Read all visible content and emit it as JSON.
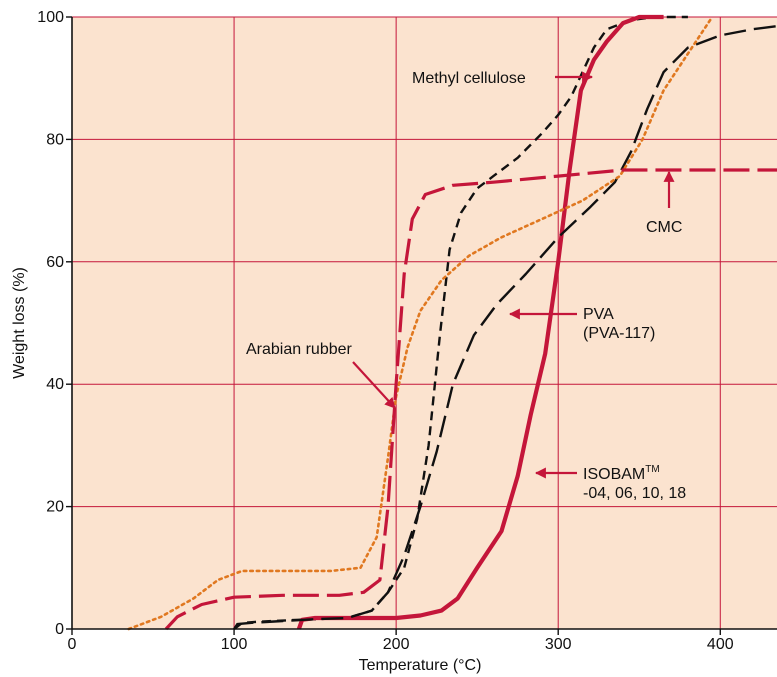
{
  "chart_data": {
    "type": "line",
    "title": "",
    "xlabel": "Temperature (°C)",
    "ylabel": "Weight loss (%)",
    "xlim": [
      0,
      435
    ],
    "ylim": [
      0,
      100
    ],
    "x_ticks": [
      0,
      100,
      200,
      300,
      400
    ],
    "y_ticks": [
      0,
      20,
      40,
      60,
      80,
      100
    ],
    "grid": true,
    "background": "#fbe3cf",
    "grid_color": "#c4163a",
    "series": [
      {
        "id": "methyl-cellulose",
        "style": "dashed-thin",
        "color": "#111111",
        "points": [
          [
            100,
            0
          ],
          [
            105,
            1
          ],
          [
            115,
            1.2
          ],
          [
            140,
            1.5
          ],
          [
            170,
            1.8
          ],
          [
            185,
            3
          ],
          [
            195,
            6
          ],
          [
            205,
            10
          ],
          [
            213,
            18
          ],
          [
            220,
            30
          ],
          [
            227,
            48
          ],
          [
            233,
            62
          ],
          [
            240,
            68
          ],
          [
            250,
            72
          ],
          [
            260,
            74
          ],
          [
            275,
            77
          ],
          [
            290,
            81
          ],
          [
            300,
            84
          ],
          [
            308,
            87
          ],
          [
            315,
            91
          ],
          [
            322,
            95
          ],
          [
            330,
            98
          ],
          [
            345,
            99.5
          ],
          [
            360,
            100
          ],
          [
            380,
            100
          ]
        ]
      },
      {
        "id": "isobam",
        "style": "solid-thick",
        "color": "#c4163a",
        "points": [
          [
            140,
            0
          ],
          [
            142,
            1.5
          ],
          [
            150,
            1.8
          ],
          [
            170,
            1.8
          ],
          [
            200,
            1.8
          ],
          [
            215,
            2.2
          ],
          [
            228,
            3
          ],
          [
            238,
            5
          ],
          [
            250,
            10
          ],
          [
            265,
            16
          ],
          [
            275,
            25
          ],
          [
            283,
            35
          ],
          [
            292,
            45
          ],
          [
            300,
            60
          ],
          [
            307,
            75
          ],
          [
            314,
            88
          ],
          [
            322,
            93
          ],
          [
            330,
            96
          ],
          [
            340,
            99
          ],
          [
            350,
            100
          ],
          [
            365,
            100
          ]
        ]
      },
      {
        "id": "pva",
        "style": "longdash",
        "color": "#111111",
        "points": [
          [
            100,
            0
          ],
          [
            102,
            0.8
          ],
          [
            110,
            1
          ],
          [
            130,
            1.3
          ],
          [
            150,
            1.6
          ],
          [
            170,
            1.8
          ],
          [
            185,
            3
          ],
          [
            195,
            6
          ],
          [
            205,
            12
          ],
          [
            215,
            20
          ],
          [
            225,
            29
          ],
          [
            235,
            40
          ],
          [
            248,
            48
          ],
          [
            262,
            53
          ],
          [
            280,
            58
          ],
          [
            300,
            64
          ],
          [
            320,
            69
          ],
          [
            335,
            73
          ],
          [
            345,
            78
          ],
          [
            355,
            85
          ],
          [
            365,
            91
          ],
          [
            380,
            95
          ],
          [
            400,
            97
          ],
          [
            420,
            98
          ],
          [
            435,
            98.5
          ]
        ]
      },
      {
        "id": "arabian-rubber",
        "style": "dotted",
        "color": "#e07820",
        "points": [
          [
            35,
            0
          ],
          [
            55,
            2
          ],
          [
            75,
            5
          ],
          [
            90,
            8
          ],
          [
            105,
            9.5
          ],
          [
            130,
            9.5
          ],
          [
            160,
            9.5
          ],
          [
            178,
            10
          ],
          [
            188,
            15
          ],
          [
            195,
            28
          ],
          [
            200,
            38
          ],
          [
            207,
            46
          ],
          [
            215,
            52
          ],
          [
            228,
            57
          ],
          [
            245,
            61
          ],
          [
            265,
            64
          ],
          [
            290,
            67
          ],
          [
            315,
            70
          ],
          [
            338,
            74
          ],
          [
            352,
            80
          ],
          [
            365,
            88
          ],
          [
            380,
            94
          ],
          [
            395,
            100
          ]
        ]
      },
      {
        "id": "cmc",
        "style": "longdash-red",
        "color": "#c4163a",
        "points": [
          [
            58,
            0
          ],
          [
            65,
            2
          ],
          [
            80,
            4
          ],
          [
            100,
            5.2
          ],
          [
            130,
            5.5
          ],
          [
            165,
            5.5
          ],
          [
            180,
            6
          ],
          [
            190,
            8
          ],
          [
            195,
            20
          ],
          [
            200,
            40
          ],
          [
            205,
            58
          ],
          [
            210,
            67
          ],
          [
            218,
            71
          ],
          [
            235,
            72.5
          ],
          [
            260,
            73
          ],
          [
            300,
            74
          ],
          [
            340,
            75
          ],
          [
            380,
            75
          ],
          [
            435,
            75
          ]
        ]
      }
    ],
    "annotations": [
      {
        "id": "methyl-cellulose",
        "lines": [
          "Methyl cellulose"
        ]
      },
      {
        "id": "cmc",
        "lines": [
          "CMC"
        ]
      },
      {
        "id": "pva",
        "lines": [
          "PVA",
          "(PVA-117)"
        ]
      },
      {
        "id": "arabian-rubber",
        "lines": [
          "Arabian rubber"
        ]
      },
      {
        "id": "isobam",
        "lines": [
          "ISOBAM",
          "-04, 06, 10, 18"
        ],
        "superscript": "TM"
      }
    ]
  }
}
